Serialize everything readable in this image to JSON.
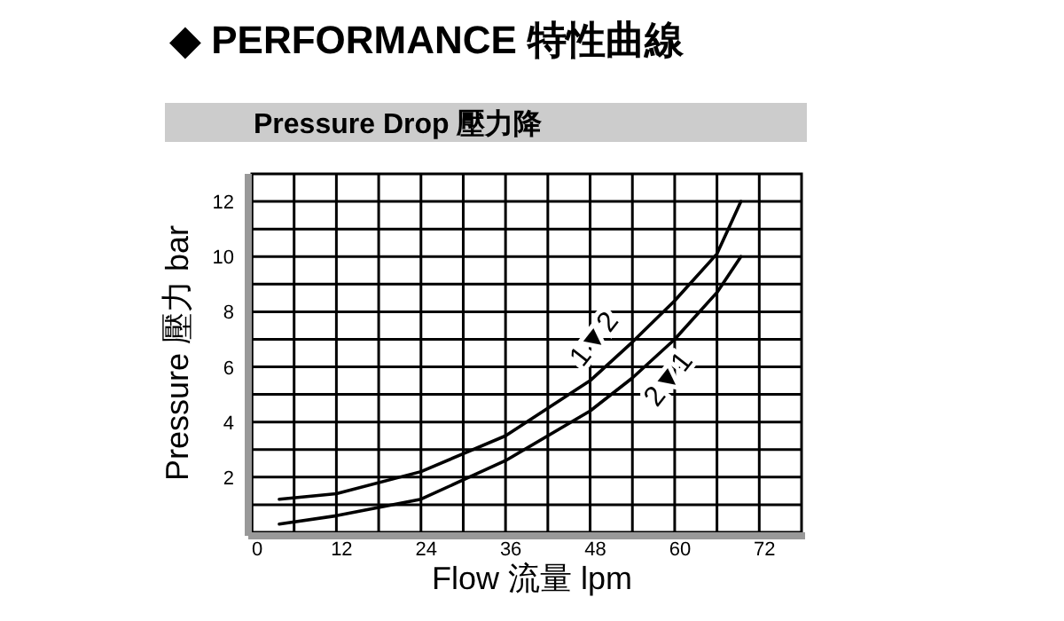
{
  "chart_data": {
    "type": "line",
    "title": "◆ PERFORMANCE 特性曲線",
    "subtitle": "Pressure Drop 壓力降",
    "xlabel": "Flow 流量 lpm",
    "ylabel": "Pressure 壓力 bar",
    "xlim": [
      0,
      78
    ],
    "ylim": [
      0,
      13
    ],
    "xticks": [
      0,
      {
        "value": 6,
        "label": null
      },
      12,
      {
        "value": 18,
        "label": null
      },
      24,
      {
        "value": 30,
        "label": null
      },
      36,
      {
        "value": 42,
        "label": null
      },
      48,
      {
        "value": 54,
        "label": null
      },
      60,
      {
        "value": 66,
        "label": null
      },
      72
    ],
    "yticks": [
      {
        "value": 1,
        "label": null
      },
      2,
      {
        "value": 3,
        "label": null
      },
      4,
      {
        "value": 5,
        "label": null
      },
      6,
      {
        "value": 7,
        "label": null
      },
      8,
      {
        "value": 9,
        "label": null
      },
      10,
      {
        "value": 11,
        "label": null
      },
      12
    ],
    "grid": true,
    "legend": false,
    "marker": "none",
    "line_style": "solid",
    "series": [
      {
        "name": "1▼2",
        "color": "#000000",
        "x": [
          3.9,
          12,
          24,
          36,
          48,
          54,
          60,
          66,
          69.4
        ],
        "values": [
          1.2,
          1.4,
          2.2,
          3.5,
          5.5,
          6.9,
          8.4,
          10.1,
          12
        ]
      },
      {
        "name": "2▼1",
        "color": "#000000",
        "x": [
          3.9,
          12,
          24,
          36,
          48,
          54,
          60,
          66,
          69.4
        ],
        "values": [
          0.3,
          0.6,
          1.2,
          2.6,
          4.4,
          5.6,
          7,
          8.7,
          10
        ]
      }
    ]
  }
}
